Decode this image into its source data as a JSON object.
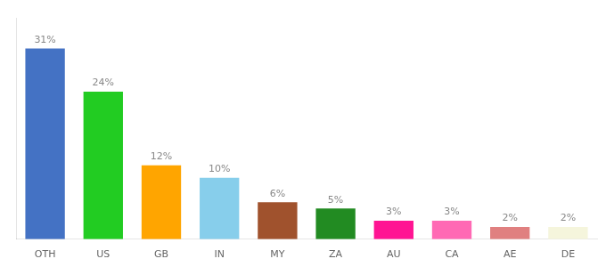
{
  "chart_data": {
    "type": "bar",
    "categories": [
      "OTH",
      "US",
      "GB",
      "IN",
      "MY",
      "ZA",
      "AU",
      "CA",
      "AE",
      "DE"
    ],
    "values": [
      31,
      24,
      12,
      10,
      6,
      5,
      3,
      3,
      2,
      2
    ],
    "value_labels": [
      "31%",
      "24%",
      "12%",
      "10%",
      "6%",
      "5%",
      "3%",
      "3%",
      "2%",
      "2%"
    ],
    "colors": [
      "#4472C4",
      "#22CC22",
      "#FFA500",
      "#87CEEB",
      "#A0522D",
      "#228B22",
      "#FF1493",
      "#FF69B4",
      "#E08080",
      "#F5F5DC"
    ],
    "ylim": [
      0,
      36
    ],
    "grid": false,
    "data_labels": true,
    "tick_labels": "x"
  }
}
